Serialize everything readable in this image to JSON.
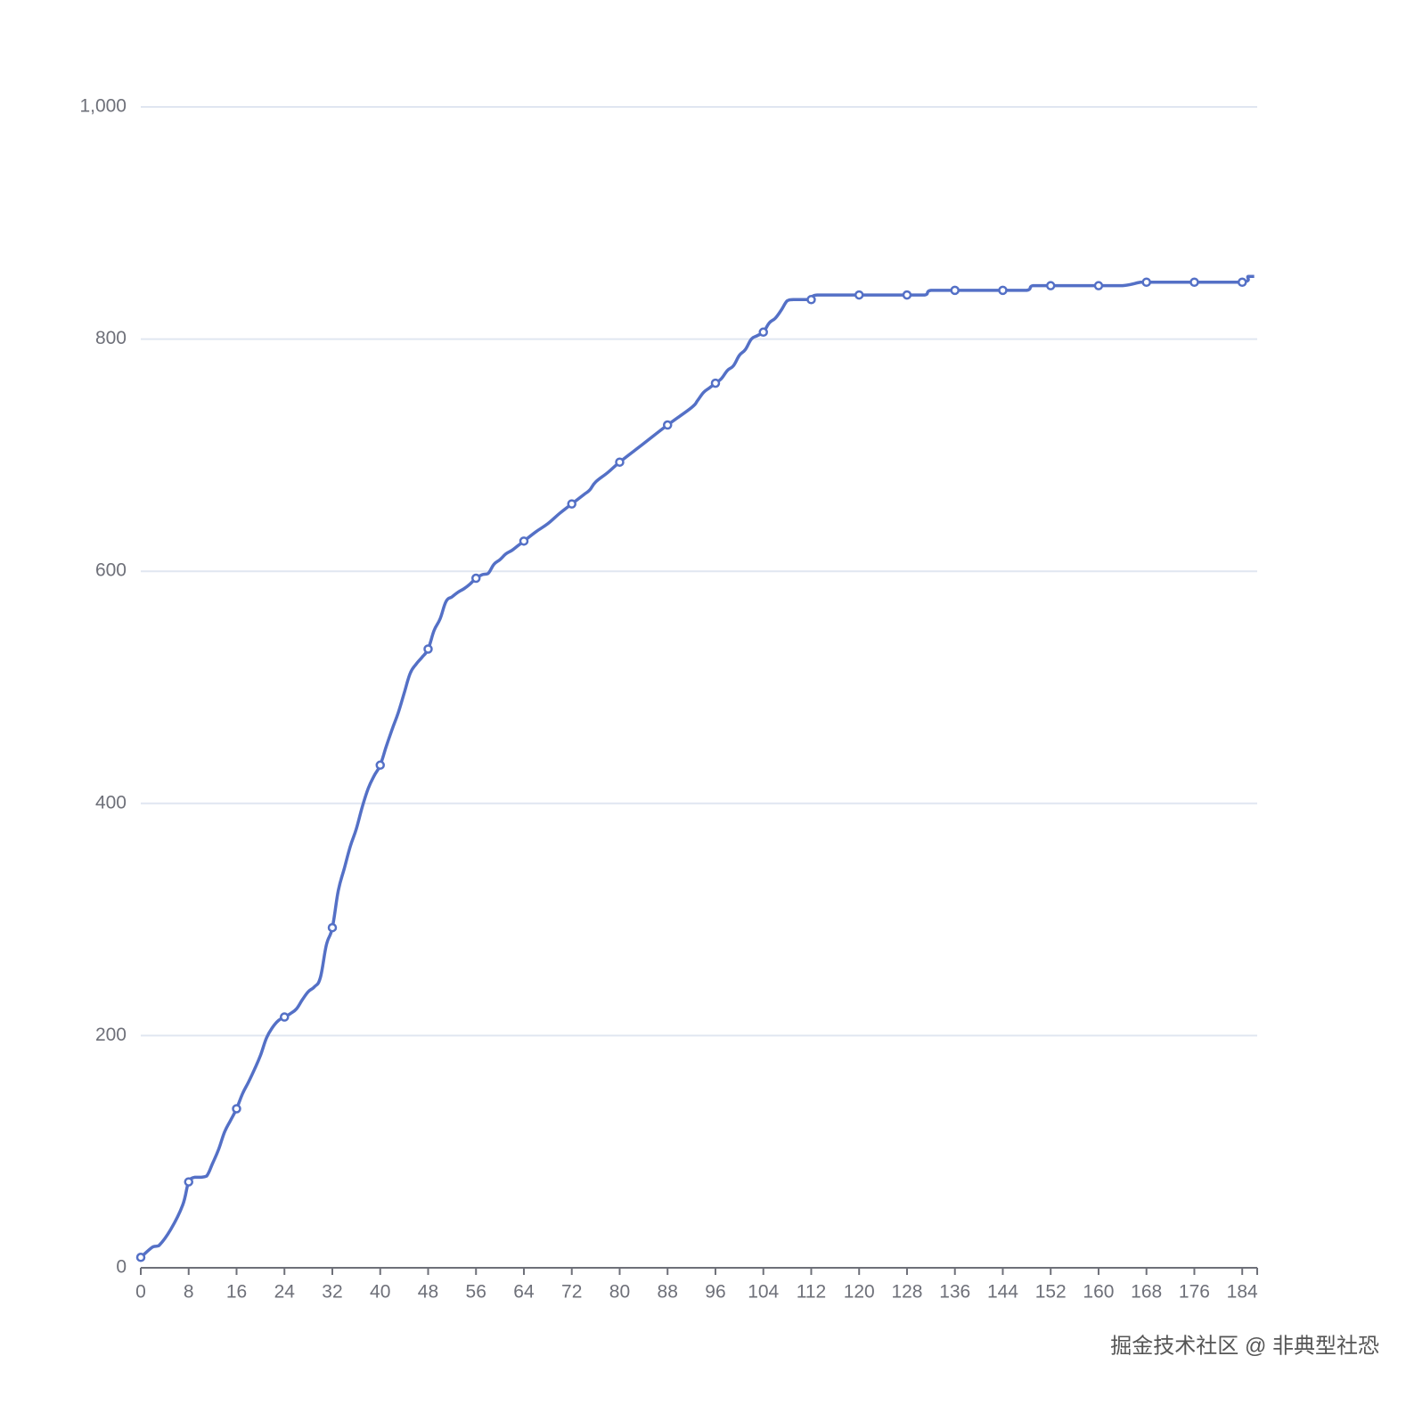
{
  "chart_data": {
    "type": "line",
    "x": [
      0,
      2,
      3,
      5,
      7,
      8,
      9,
      10,
      11,
      12,
      13,
      14,
      15,
      16,
      17,
      18,
      19,
      20,
      21,
      22,
      23,
      24,
      25,
      26,
      27,
      28,
      29,
      30,
      31,
      32,
      33,
      34,
      35,
      36,
      37,
      38,
      39,
      40,
      41,
      42,
      43,
      44,
      45,
      46,
      47,
      48,
      49,
      50,
      51,
      52,
      53,
      54,
      55,
      56,
      57,
      58,
      59,
      60,
      61,
      62,
      63,
      64,
      66,
      68,
      70,
      72,
      74,
      75,
      76,
      78,
      80,
      84,
      88,
      92,
      93,
      94,
      95,
      96,
      97,
      98,
      99,
      100,
      101,
      102,
      103,
      104,
      105,
      106,
      107,
      108,
      109,
      112,
      113,
      120,
      128,
      131,
      132,
      136,
      144,
      148,
      149,
      152,
      160,
      164,
      167,
      168,
      176,
      184,
      185,
      186
    ],
    "series": [
      {
        "color": "#5470c6",
        "values": [
          9,
          18,
          19,
          33,
          54,
          74,
          78,
          78,
          79,
          90,
          102,
          117,
          127,
          137,
          150,
          160,
          171,
          183,
          198,
          207,
          213,
          216,
          219,
          223,
          231,
          238,
          242,
          250,
          278,
          293,
          325,
          344,
          363,
          378,
          397,
          413,
          424,
          433,
          449,
          464,
          478,
          495,
          512,
          520,
          526,
          533,
          549,
          559,
          574,
          578,
          582,
          585,
          589,
          594,
          597,
          598,
          606,
          610,
          615,
          618,
          622,
          626,
          634,
          641,
          650,
          658,
          666,
          670,
          677,
          685,
          694,
          710,
          726,
          741,
          747,
          754,
          758,
          762,
          766,
          773,
          777,
          786,
          791,
          800,
          803,
          806,
          814,
          818,
          825,
          833,
          834,
          834,
          838,
          838,
          838,
          838,
          842,
          842,
          842,
          842,
          846,
          846,
          846,
          846,
          849,
          849,
          849,
          849,
          854,
          854
        ]
      }
    ],
    "xlim": [
      0,
      186.5
    ],
    "xticks": [
      0,
      8,
      16,
      24,
      32,
      40,
      48,
      56,
      64,
      72,
      80,
      88,
      96,
      104,
      112,
      120,
      128,
      136,
      144,
      152,
      160,
      168,
      176,
      184
    ],
    "ylim": [
      0,
      1000
    ],
    "yticks": [
      0,
      200,
      400,
      600,
      800,
      {
        "value": 1000,
        "label": "1,000"
      }
    ],
    "grid": true,
    "symbol_every": 8,
    "watermark": "掘金技术社区 @ 非典型社恐"
  }
}
